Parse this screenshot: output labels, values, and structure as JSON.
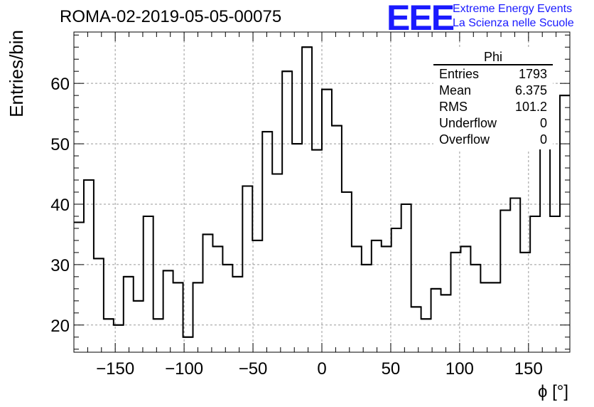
{
  "header": {
    "title": "ROMA-02-2019-05-05-00075",
    "logo_letters": "EEE",
    "logo_line1": "Extreme Energy Events",
    "logo_line2": "La Scienza nelle Scuole",
    "logo_color": "#1a1aff"
  },
  "stats": {
    "name": "Phi",
    "rows": [
      {
        "label": "Entries",
        "value": "1793"
      },
      {
        "label": "Mean",
        "value": "6.375"
      },
      {
        "label": "RMS",
        "value": "101.2"
      },
      {
        "label": "Underflow",
        "value": "0"
      },
      {
        "label": "Overflow",
        "value": "0"
      }
    ]
  },
  "chart_data": {
    "type": "histogram",
    "title": "ROMA-02-2019-05-05-00075",
    "xlabel": "ϕ [°]",
    "ylabel": "Entries/bin",
    "xlim": [
      -180,
      180
    ],
    "ylim": [
      15.5,
      68.5
    ],
    "grid": true,
    "bin_width": 7.2,
    "x_ticks": [
      -150,
      -100,
      -50,
      0,
      50,
      100,
      150
    ],
    "y_ticks": [
      20,
      30,
      40,
      50,
      60
    ],
    "values": [
      37,
      44,
      31,
      21,
      20,
      28,
      24,
      38,
      21,
      29,
      27,
      18,
      27,
      35,
      33,
      30,
      28,
      43,
      34,
      52,
      45,
      62,
      50,
      66,
      49,
      59,
      53,
      42,
      33,
      30,
      34,
      33,
      36,
      40,
      23,
      21,
      26,
      25,
      32,
      33,
      30,
      27,
      27,
      39,
      41,
      32,
      38,
      51,
      38,
      58
    ]
  }
}
